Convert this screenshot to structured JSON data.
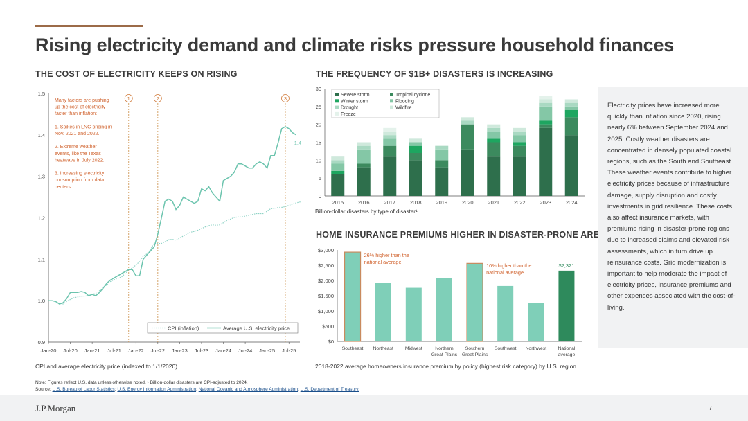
{
  "page": {
    "title": "Rising electricity demand and climate risks pressure household finances",
    "sidebar_text": "Electricity prices have increased more quickly than inflation since 2020, rising nearly 6% between September 2024 and 2025. Costly weather disasters are concentrated in densely populated coastal regions, such as the South and Southeast. These weather events contribute to higher electricity prices because of infrastructure damage, supply disruption and costly investments in grid resilience. These costs also affect insurance markets, with premiums rising in disaster-prone regions due to increased claims and elevated risk assessments, which in turn drive up reinsurance costs. Grid modernization is important to help moderate the impact of electricity prices, insurance premiums and other expenses associated with the cost-of-living.",
    "note_prefix": "Note: Figures reflect U.S. data unless otherwise noted. ¹ Billion-dollar disasters are CPI-adjusted to 2024.",
    "source_prefix": "Source: ",
    "sources": [
      "U.S. Bureau of Labor Statistics",
      "U.S. Energy Information Administration",
      "National Oceanic and Atmosphere Administration",
      "U.S. Department of Treasury."
    ],
    "logo": "J.P.Morgan",
    "page_number": "7"
  },
  "chart_data": [
    {
      "type": "line",
      "section_title": "THE COST OF ELECTRICITY KEEPS ON RISING",
      "caption": "CPI and average electricity price (indexed to 1/1/2020)",
      "ylim": [
        0.9,
        1.5
      ],
      "yticks": [
        "0.9",
        "1.0",
        "1.1",
        "1.2",
        "1.3",
        "1.4",
        "1.5"
      ],
      "xlim": [
        "2020-01",
        "2025-10"
      ],
      "xticks": [
        "Jan-20",
        "Jul-20",
        "Jan-21",
        "Jul-21",
        "Jan-22",
        "Jul-22",
        "Jan-23",
        "Jul-23",
        "Jan-24",
        "Jul-24",
        "Jan-25",
        "Jul-25"
      ],
      "legend": "bottom-right",
      "end_label": "1.4",
      "annotation_lines": [
        "Many factors are pushing",
        "up the cost of electricity",
        "faster than inflation:",
        "",
        "1. Spikes in LNG pricing in",
        "Nov. 2021 and 2022.",
        "",
        "2. Extreme weather",
        "events, like the Texas",
        "heatwave in July 2022.",
        "",
        "3. Increasing electricity",
        "consumption from data",
        "centers."
      ],
      "markers": [
        {
          "label": "1",
          "x": "2021-11"
        },
        {
          "label": "2",
          "x": "2022-07"
        },
        {
          "label": "3",
          "x": "2025-06"
        }
      ],
      "series": [
        {
          "name": "CPI (inflation)",
          "color": "#8fd3c6",
          "style": "dotted",
          "values": [
            1.0,
            1.0,
            0.997,
            0.994,
            0.992,
            0.998,
            1.003,
            1.007,
            1.009,
            1.01,
            1.011,
            1.012,
            1.015,
            1.018,
            1.024,
            1.032,
            1.038,
            1.046,
            1.051,
            1.054,
            1.057,
            1.065,
            1.073,
            1.079,
            1.086,
            1.094,
            1.107,
            1.113,
            1.124,
            1.138,
            1.138,
            1.138,
            1.142,
            1.147,
            1.148,
            1.146,
            1.151,
            1.156,
            1.16,
            1.165,
            1.167,
            1.17,
            1.174,
            1.178,
            1.181,
            1.183,
            1.182,
            1.183,
            1.188,
            1.194,
            1.197,
            1.201,
            1.202,
            1.202,
            1.204,
            1.206,
            1.208,
            1.21,
            1.21,
            1.21,
            1.216,
            1.222,
            1.222,
            1.225,
            1.225,
            1.227,
            1.23,
            1.233,
            1.236,
            1.238,
            1.24
          ]
        },
        {
          "name": "Average U.S. electricity price",
          "color": "#6cc4ae",
          "style": "solid",
          "values": [
            1.0,
            1.0,
            0.998,
            0.992,
            0.995,
            1.005,
            1.02,
            1.02,
            1.02,
            1.022,
            1.02,
            1.012,
            1.015,
            1.012,
            1.02,
            1.03,
            1.042,
            1.05,
            1.055,
            1.06,
            1.065,
            1.07,
            1.075,
            1.075,
            1.06,
            1.06,
            1.1,
            1.11,
            1.12,
            1.13,
            1.16,
            1.2,
            1.24,
            1.245,
            1.24,
            1.22,
            1.23,
            1.25,
            1.245,
            1.24,
            1.235,
            1.24,
            1.27,
            1.265,
            1.275,
            1.26,
            1.25,
            1.24,
            1.29,
            1.295,
            1.3,
            1.31,
            1.33,
            1.33,
            1.325,
            1.32,
            1.32,
            1.33,
            1.335,
            1.33,
            1.32,
            1.35,
            1.35,
            1.38,
            1.415,
            1.42,
            1.415,
            1.405,
            1.4
          ]
        }
      ]
    },
    {
      "type": "bar",
      "stacked": true,
      "section_title": "THE FREQUENCY OF $1B+ DISASTERS IS INCREASING",
      "caption": "Billion-dollar disasters by type of disaster¹",
      "categories": [
        "2015",
        "2016",
        "2017",
        "2018",
        "2019",
        "2020",
        "2021",
        "2022",
        "2023",
        "2024"
      ],
      "ylim": [
        0,
        30
      ],
      "yticks": [
        "0",
        "5",
        "10",
        "15",
        "20",
        "25",
        "30"
      ],
      "legend": "top-left",
      "series": [
        {
          "name": "Severe storm",
          "color": "#2e6f4c",
          "values": [
            6,
            8,
            11,
            10,
            8,
            13,
            11,
            11,
            19,
            17
          ]
        },
        {
          "name": "Tropical cyclone",
          "color": "#3c8a5e",
          "values": [
            0,
            1,
            3,
            2,
            2,
            7,
            4,
            3,
            1,
            5
          ]
        },
        {
          "name": "Winter storm",
          "color": "#1ea660",
          "values": [
            1,
            0,
            0,
            2,
            0,
            0,
            1,
            1,
            1,
            2
          ]
        },
        {
          "name": "Flooding",
          "color": "#84c7a6",
          "values": [
            2,
            4,
            2,
            1,
            3,
            0,
            2,
            2,
            4,
            1
          ]
        },
        {
          "name": "Drought",
          "color": "#a9d9c2",
          "values": [
            1,
            1,
            1,
            0,
            1,
            1,
            1,
            1,
            1,
            1
          ]
        },
        {
          "name": "Wildfire",
          "color": "#cfe9dc",
          "values": [
            1,
            1,
            1,
            1,
            0,
            1,
            1,
            1,
            1,
            1
          ]
        },
        {
          "name": "Freeze",
          "color": "#e4f2eb",
          "values": [
            0,
            0,
            1,
            0,
            0,
            0,
            0,
            0,
            1,
            0
          ]
        }
      ]
    },
    {
      "type": "bar",
      "section_title": "HOME INSURANCE PREMIUMS HIGHER IN DISASTER-PRONE AREAS",
      "caption": "2018-2022 average homeowners insurance premium by policy (highest risk category) by U.S. region",
      "categories": [
        [
          "Southeast"
        ],
        [
          "Northeast"
        ],
        [
          "Midwest"
        ],
        [
          "Northern",
          "Great Plains"
        ],
        [
          "Southern",
          "Great Plains"
        ],
        [
          "Southwest"
        ],
        [
          "Northwest"
        ],
        [
          "National",
          "average"
        ]
      ],
      "values": [
        2930,
        1925,
        1760,
        2080,
        2560,
        1820,
        1270,
        2321
      ],
      "ylim": [
        0,
        3000
      ],
      "yticks": [
        "$0",
        "$500",
        "$1,000",
        "$1,500",
        "$2,000",
        "$2,500",
        "$3,000"
      ],
      "bar_color": "#7fcfb8",
      "highlight_color": "#2e8a5c",
      "outline_color": "#c98a5e",
      "outlined": [
        0,
        4
      ],
      "value_label": {
        "index": 7,
        "text": "$2,321"
      },
      "annotations": [
        {
          "index": 0,
          "lines": [
            "26% higher than the",
            "national average"
          ]
        },
        {
          "index": 4,
          "lines": [
            "10% higher than the",
            "national average"
          ]
        }
      ]
    }
  ]
}
